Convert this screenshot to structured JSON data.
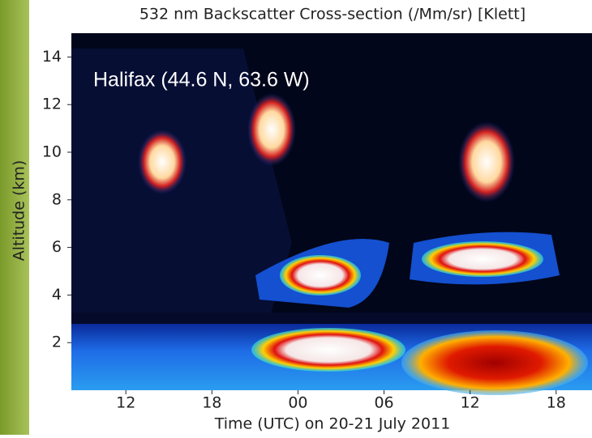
{
  "chart_data": {
    "type": "heatmap",
    "title": "532 nm Backscatter Cross-section (/Mm/sr) [Klett]",
    "annotation": "Halifax (44.6 N, 63.6 W)",
    "x_label": "Time (UTC) on 20-21 July 2011",
    "y_label": "Altitude (km)",
    "xlim": [
      8.2,
      44.5
    ],
    "xticks": [
      12,
      18,
      {
        "value": 24,
        "label": "00"
      },
      {
        "value": 30,
        "label": "06"
      },
      {
        "value": 36,
        "label": "12"
      },
      {
        "value": 42,
        "label": "18"
      }
    ],
    "ylim": [
      0,
      15
    ],
    "yticks": [
      2,
      4,
      6,
      8,
      10,
      12,
      14
    ],
    "grid": false
  }
}
